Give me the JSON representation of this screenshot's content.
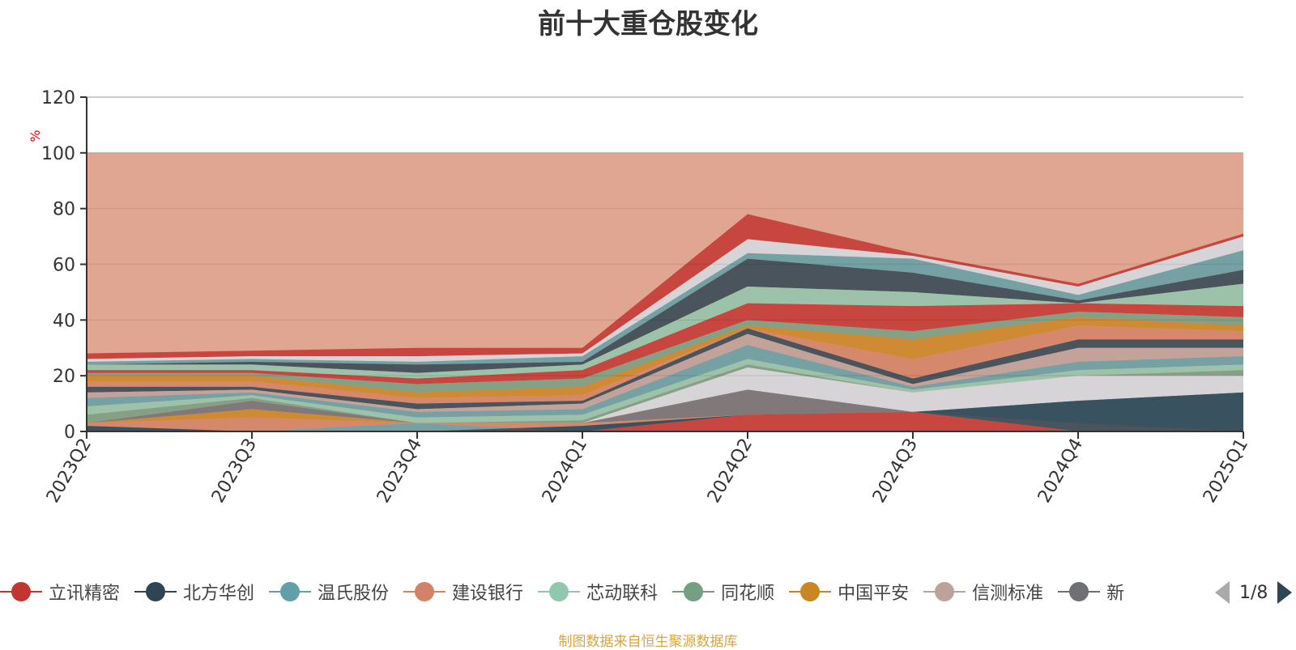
{
  "title": "前十大重仓股变化",
  "source": "制图数据来自恒生聚源数据库",
  "pager": {
    "text": "1/8"
  },
  "legend": [
    {
      "name": "立讯精密",
      "color": "#c23531"
    },
    {
      "name": "北方华创",
      "color": "#2f4554"
    },
    {
      "name": "温氏股份",
      "color": "#61a0a8"
    },
    {
      "name": "建设银行",
      "color": "#d48265"
    },
    {
      "name": "芯动联科",
      "color": "#91c7ae"
    },
    {
      "name": "同花顺",
      "color": "#749f83"
    },
    {
      "name": "中国平安",
      "color": "#ca8622"
    },
    {
      "name": "信测标准",
      "color": "#bda29a"
    },
    {
      "name": "新",
      "color": "#6e7074"
    }
  ],
  "chart_data": {
    "type": "area",
    "title": "前十大重仓股变化",
    "ylabel": "%",
    "ylim": [
      0,
      120
    ],
    "yticks": [
      0,
      20,
      40,
      60,
      80,
      100,
      120
    ],
    "categories": [
      "2023Q2",
      "2023Q3",
      "2023Q4",
      "2024Q1",
      "2024Q2",
      "2024Q3",
      "2024Q4",
      "2025Q1"
    ],
    "background_series": {
      "name": "",
      "color": "#e0a692",
      "values": [
        100,
        100,
        100,
        100,
        100,
        100,
        100,
        100
      ]
    },
    "layers": [
      {
        "color": "#c23531",
        "values": [
          0,
          0,
          0,
          0,
          6,
          7,
          0,
          0
        ]
      },
      {
        "color": "#2f4554",
        "values": [
          2,
          0,
          0,
          2,
          6,
          7,
          11,
          14
        ]
      },
      {
        "color": "#61a0a8",
        "values": [
          0,
          0,
          3,
          0,
          6,
          7,
          3,
          0
        ]
      },
      {
        "color": "#d48265",
        "values": [
          3,
          5,
          3,
          3,
          6,
          7,
          11,
          8
        ]
      },
      {
        "color": "#ca8622",
        "values": [
          3,
          8,
          3,
          3,
          6,
          7,
          11,
          14
        ]
      },
      {
        "color": "#6e7074",
        "values": [
          3,
          11,
          3,
          3,
          15,
          7,
          11,
          14
        ]
      },
      {
        "color": "#d5dce4",
        "values": [
          3,
          11,
          3,
          3,
          23,
          14,
          20,
          20
        ]
      },
      {
        "color": "#749f83",
        "values": [
          6,
          12,
          3,
          4,
          24,
          14,
          20,
          22
        ]
      },
      {
        "color": "#91c7ae",
        "values": [
          9,
          13,
          5,
          6,
          26,
          15,
          22,
          24
        ]
      },
      {
        "color": "#61a0a8",
        "values": [
          12,
          14,
          7,
          8,
          31,
          16,
          25,
          27
        ]
      },
      {
        "color": "#bda29a",
        "values": [
          14,
          15,
          8,
          10,
          35,
          17,
          30,
          30
        ]
      },
      {
        "color": "#2f4554",
        "values": [
          16,
          16,
          10,
          11,
          37,
          19,
          33,
          33
        ]
      },
      {
        "color": "#d48265",
        "values": [
          18,
          18,
          12,
          13,
          37,
          26,
          38,
          36
        ]
      },
      {
        "color": "#ca8622",
        "values": [
          20,
          20,
          14,
          16,
          38,
          33,
          41,
          38
        ]
      },
      {
        "color": "#749f83",
        "values": [
          21,
          21,
          17,
          19,
          40,
          36,
          43,
          41
        ]
      },
      {
        "color": "#c23531",
        "values": [
          22,
          22,
          19,
          22,
          46,
          45,
          46,
          45
        ]
      },
      {
        "color": "#91c7ae",
        "values": [
          24,
          24,
          21,
          24,
          52,
          50,
          46,
          53
        ]
      },
      {
        "color": "#2f4554",
        "values": [
          24,
          25,
          24,
          25,
          62,
          57,
          47,
          58
        ]
      },
      {
        "color": "#61a0a8",
        "values": [
          25,
          26,
          25,
          27,
          64,
          62,
          49,
          65
        ]
      },
      {
        "color": "#d5dce4",
        "values": [
          26,
          27,
          27,
          28,
          69,
          63,
          52,
          70
        ]
      },
      {
        "color": "#c23531",
        "values": [
          28,
          29,
          30,
          30,
          78,
          64,
          53,
          71
        ]
      }
    ]
  }
}
